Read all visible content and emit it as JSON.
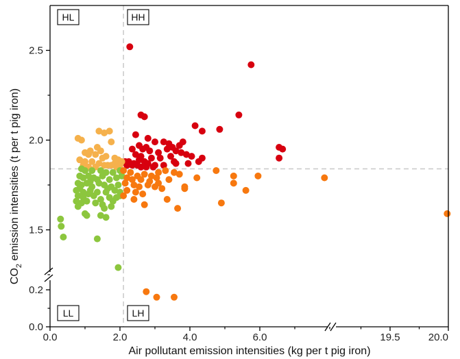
{
  "chart_data": {
    "type": "scatter",
    "xlabel": "Air pollutant emission intensities (kg per t pig iron)",
    "ylabel_main": "CO",
    "ylabel_sub": "2",
    "ylabel_rest": " emission intensities (t per t pig iron)",
    "x_ticks_left": [
      "0.0",
      "2.0",
      "4.0",
      "6.0"
    ],
    "x_ticks_right": [
      "19.5",
      "20.0"
    ],
    "y_ticks_upper": [
      "1.5",
      "2.0",
      "2.5"
    ],
    "y_ticks_lower": [
      "0.0",
      "0.2"
    ],
    "x_axis_break": [
      8.0,
      19.0
    ],
    "y_axis_break": [
      0.25,
      1.25
    ],
    "xlim": [
      0,
      20.0
    ],
    "ylim": [
      0,
      2.75
    ],
    "threshold_x": 2.1,
    "threshold_y": 1.84,
    "quadrants": {
      "hl": "HL",
      "hh": "HH",
      "ll": "LL",
      "lh": "LH"
    },
    "colors": {
      "HH": "#d7000f",
      "HL": "#f5b14c",
      "LL": "#8cc63e",
      "LH": "#f7780f",
      "guide": "#cccccc"
    },
    "series": [
      {
        "group": "HH",
        "points": [
          [
            2.28,
            2.52
          ],
          [
            5.75,
            2.42
          ],
          [
            2.6,
            2.14
          ],
          [
            2.7,
            2.13
          ],
          [
            5.4,
            2.14
          ],
          [
            4.15,
            2.08
          ],
          [
            4.85,
            2.06
          ],
          [
            4.35,
            2.05
          ],
          [
            2.45,
            2.03
          ],
          [
            2.8,
            2.01
          ],
          [
            3.0,
            1.99
          ],
          [
            3.25,
            1.99
          ],
          [
            3.4,
            1.98
          ],
          [
            3.5,
            1.96
          ],
          [
            3.7,
            1.97
          ],
          [
            3.8,
            1.99
          ],
          [
            2.55,
            1.97
          ],
          [
            2.65,
            1.95
          ],
          [
            2.75,
            1.96
          ],
          [
            2.85,
            1.94
          ],
          [
            3.1,
            1.93
          ],
          [
            3.35,
            1.95
          ],
          [
            3.6,
            1.94
          ],
          [
            3.75,
            1.93
          ],
          [
            2.35,
            1.95
          ],
          [
            2.45,
            1.92
          ],
          [
            2.6,
            1.91
          ],
          [
            2.9,
            1.9
          ],
          [
            3.15,
            1.9
          ],
          [
            3.45,
            1.91
          ],
          [
            3.9,
            1.92
          ],
          [
            4.05,
            1.91
          ],
          [
            6.55,
            1.96
          ],
          [
            6.65,
            1.95
          ],
          [
            6.55,
            1.9
          ],
          [
            4.35,
            1.9
          ],
          [
            4.25,
            1.88
          ],
          [
            3.95,
            1.87
          ],
          [
            3.55,
            1.88
          ],
          [
            2.7,
            1.88
          ],
          [
            2.15,
            1.88
          ],
          [
            2.25,
            1.88
          ],
          [
            2.4,
            1.87
          ],
          [
            2.5,
            1.86
          ],
          [
            2.6,
            1.85
          ],
          [
            2.8,
            1.87
          ],
          [
            3.0,
            1.86
          ],
          [
            3.25,
            1.86
          ],
          [
            2.95,
            1.85
          ],
          [
            2.35,
            1.86
          ],
          [
            2.2,
            1.86
          ],
          [
            2.75,
            1.85
          ],
          [
            3.6,
            1.87
          ],
          [
            2.55,
            1.89
          ]
        ]
      },
      {
        "group": "HL",
        "points": [
          [
            0.8,
            2.01
          ],
          [
            0.9,
            2.0
          ],
          [
            1.4,
            2.05
          ],
          [
            1.55,
            2.04
          ],
          [
            1.7,
            2.05
          ],
          [
            1.75,
            1.99
          ],
          [
            1.35,
            1.96
          ],
          [
            1.45,
            1.94
          ],
          [
            1.0,
            1.93
          ],
          [
            1.1,
            1.92
          ],
          [
            1.15,
            1.94
          ],
          [
            1.3,
            1.92
          ],
          [
            1.5,
            1.9
          ],
          [
            1.6,
            1.91
          ],
          [
            1.85,
            1.9
          ],
          [
            1.95,
            1.89
          ],
          [
            0.85,
            1.89
          ],
          [
            1.0,
            1.88
          ],
          [
            1.2,
            1.88
          ],
          [
            1.4,
            1.87
          ],
          [
            1.55,
            1.86
          ],
          [
            1.65,
            1.86
          ],
          [
            1.75,
            1.86
          ],
          [
            1.85,
            1.87
          ],
          [
            2.0,
            1.86
          ],
          [
            2.05,
            1.88
          ],
          [
            1.9,
            1.85
          ],
          [
            1.1,
            1.85
          ],
          [
            1.3,
            1.85
          ],
          [
            0.95,
            1.86
          ]
        ]
      },
      {
        "group": "LL",
        "points": [
          [
            0.3,
            1.56
          ],
          [
            0.32,
            1.52
          ],
          [
            0.38,
            1.46
          ],
          [
            1.35,
            1.45
          ],
          [
            1.95,
            1.29
          ],
          [
            0.9,
            1.84
          ],
          [
            1.0,
            1.83
          ],
          [
            1.2,
            1.83
          ],
          [
            1.45,
            1.83
          ],
          [
            1.6,
            1.82
          ],
          [
            1.8,
            1.82
          ],
          [
            2.0,
            1.83
          ],
          [
            0.85,
            1.8
          ],
          [
            0.95,
            1.79
          ],
          [
            1.1,
            1.8
          ],
          [
            1.25,
            1.79
          ],
          [
            1.5,
            1.8
          ],
          [
            1.7,
            1.78
          ],
          [
            1.9,
            1.79
          ],
          [
            2.05,
            1.8
          ],
          [
            0.8,
            1.76
          ],
          [
            0.9,
            1.75
          ],
          [
            1.05,
            1.76
          ],
          [
            1.2,
            1.74
          ],
          [
            1.4,
            1.76
          ],
          [
            1.55,
            1.75
          ],
          [
            1.75,
            1.74
          ],
          [
            1.95,
            1.75
          ],
          [
            0.75,
            1.72
          ],
          [
            0.95,
            1.71
          ],
          [
            1.15,
            1.72
          ],
          [
            1.35,
            1.71
          ],
          [
            1.6,
            1.71
          ],
          [
            1.85,
            1.72
          ],
          [
            2.0,
            1.71
          ],
          [
            0.8,
            1.69
          ],
          [
            0.95,
            1.68
          ],
          [
            1.25,
            1.69
          ],
          [
            1.45,
            1.67
          ],
          [
            1.7,
            1.68
          ],
          [
            1.9,
            1.68
          ],
          [
            0.75,
            1.66
          ],
          [
            0.9,
            1.65
          ],
          [
            1.05,
            1.66
          ],
          [
            1.3,
            1.65
          ],
          [
            1.5,
            1.64
          ],
          [
            0.8,
            1.63
          ],
          [
            1.55,
            1.62
          ],
          [
            1.75,
            1.63
          ],
          [
            1.0,
            1.59
          ],
          [
            1.05,
            1.58
          ],
          [
            1.45,
            1.58
          ],
          [
            1.6,
            1.57
          ],
          [
            2.0,
            1.69
          ],
          [
            1.65,
            1.73
          ],
          [
            1.15,
            1.77
          ],
          [
            0.85,
            1.73
          ],
          [
            1.35,
            1.78
          ],
          [
            1.1,
            1.7
          ],
          [
            1.8,
            1.66
          ]
        ]
      },
      {
        "group": "LH",
        "points": [
          [
            2.1,
            1.83
          ],
          [
            2.3,
            1.82
          ],
          [
            2.5,
            1.8
          ],
          [
            2.7,
            1.81
          ],
          [
            2.9,
            1.8
          ],
          [
            3.1,
            1.82
          ],
          [
            3.3,
            1.83
          ],
          [
            3.55,
            1.82
          ],
          [
            3.7,
            1.81
          ],
          [
            4.2,
            1.79
          ],
          [
            4.75,
            1.83
          ],
          [
            5.25,
            1.8
          ],
          [
            5.95,
            1.8
          ],
          [
            7.85,
            1.79
          ],
          [
            2.2,
            1.79
          ],
          [
            2.35,
            1.78
          ],
          [
            2.6,
            1.78
          ],
          [
            2.85,
            1.77
          ],
          [
            3.05,
            1.79
          ],
          [
            3.4,
            1.78
          ],
          [
            2.15,
            1.76
          ],
          [
            2.4,
            1.75
          ],
          [
            2.55,
            1.74
          ],
          [
            2.8,
            1.75
          ],
          [
            3.0,
            1.74
          ],
          [
            3.2,
            1.73
          ],
          [
            3.85,
            1.73
          ],
          [
            3.85,
            1.74
          ],
          [
            5.25,
            1.76
          ],
          [
            5.6,
            1.72
          ],
          [
            2.2,
            1.72
          ],
          [
            2.45,
            1.71
          ],
          [
            2.1,
            1.69
          ],
          [
            2.65,
            1.7
          ],
          [
            3.35,
            1.67
          ],
          [
            4.9,
            1.65
          ],
          [
            2.7,
            1.64
          ],
          [
            3.65,
            1.62
          ],
          [
            2.4,
            1.67
          ],
          [
            3.1,
            1.76
          ],
          [
            19.99,
            1.59
          ],
          [
            2.75,
            0.19
          ],
          [
            3.05,
            0.16
          ],
          [
            3.55,
            0.16
          ]
        ]
      }
    ]
  }
}
